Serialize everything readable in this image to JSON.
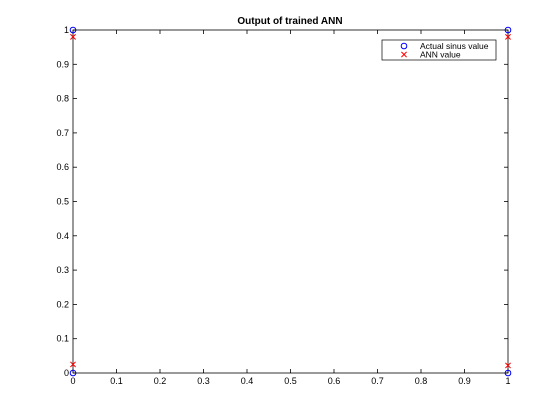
{
  "chart_data": {
    "type": "scatter",
    "title": "Output of trained ANN",
    "xlabel": "",
    "ylabel": "",
    "xlim": [
      0,
      1
    ],
    "ylim": [
      0,
      1
    ],
    "xticks": [
      "0",
      "0.1",
      "0.2",
      "0.3",
      "0.4",
      "0.5",
      "0.6",
      "0.7",
      "0.8",
      "0.9",
      "1"
    ],
    "yticks": [
      "0",
      "0.1",
      "0.2",
      "0.3",
      "0.4",
      "0.5",
      "0.6",
      "0.7",
      "0.8",
      "0.9",
      "1"
    ],
    "grid": false,
    "legend_position": "top-right",
    "series": [
      {
        "name": "Actual sinus value",
        "marker": "circle",
        "color": "#0000ff",
        "points": [
          [
            0,
            1
          ],
          [
            0,
            0
          ],
          [
            1,
            1
          ],
          [
            1,
            0
          ]
        ]
      },
      {
        "name": "ANN value",
        "marker": "x",
        "color": "#ff0000",
        "points": [
          [
            0,
            0.98
          ],
          [
            0,
            0.025
          ],
          [
            1,
            0.98
          ],
          [
            1,
            0.022
          ]
        ]
      }
    ]
  }
}
